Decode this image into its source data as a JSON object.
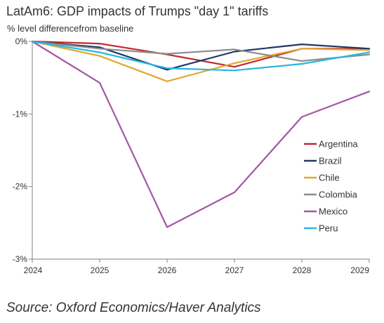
{
  "title": "LatAm6: GDP impacts of Trumps \"day 1\" tariffs",
  "subtitle": "% level differencefrom baseline",
  "source": "Source: Oxford Economics/Haver Analytics",
  "chart_data": {
    "type": "line",
    "title": "LatAm6: GDP impacts of Trumps \"day 1\" tariffs",
    "subtitle": "% level differencefrom baseline",
    "x": [
      "2024",
      "2025",
      "2026",
      "2027",
      "2028",
      "2029"
    ],
    "ylim": [
      -3,
      0
    ],
    "y_ticks": [
      0,
      -1,
      -2,
      -3
    ],
    "y_tick_labels": [
      "0%",
      "-1%",
      "-2%",
      "-3%"
    ],
    "grid": false,
    "legend_position": "right",
    "series": [
      {
        "name": "Argentina",
        "color": "#c0282d",
        "values": [
          0,
          -0.03,
          -0.18,
          -0.35,
          -0.1,
          -0.1
        ]
      },
      {
        "name": "Brazil",
        "color": "#1f3864",
        "values": [
          0,
          -0.08,
          -0.39,
          -0.14,
          -0.04,
          -0.1
        ]
      },
      {
        "name": "Chile",
        "color": "#e0a82e",
        "values": [
          0,
          -0.2,
          -0.55,
          -0.3,
          -0.1,
          -0.12
        ]
      },
      {
        "name": "Colombia",
        "color": "#8c8c8c",
        "values": [
          0,
          -0.1,
          -0.17,
          -0.11,
          -0.27,
          -0.18
        ]
      },
      {
        "name": "Mexico",
        "color": "#a357a5",
        "values": [
          0,
          -0.57,
          -2.56,
          -2.08,
          -1.04,
          -0.69
        ]
      },
      {
        "name": "Peru",
        "color": "#27b6e6",
        "values": [
          0,
          -0.15,
          -0.37,
          -0.4,
          -0.31,
          -0.15
        ]
      }
    ]
  }
}
